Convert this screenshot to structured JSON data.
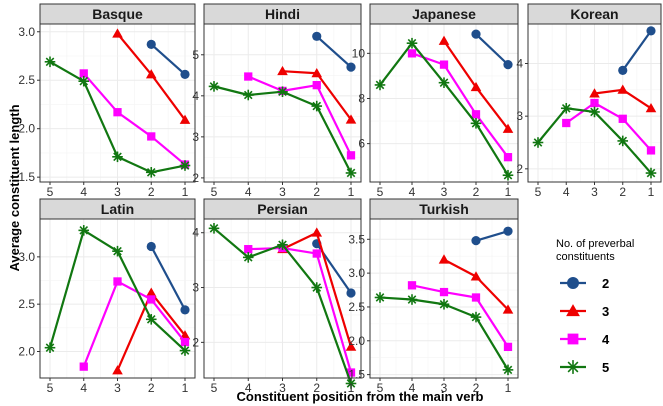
{
  "chart_data": {
    "type": "line",
    "xlabel": "Constituent position from the main verb",
    "ylabel": "Average constituent length",
    "x_ticks": [
      5,
      4,
      3,
      2,
      1
    ],
    "legend": {
      "title_lines": [
        "No. of preverbal",
        "constituents"
      ],
      "placement": "right"
    },
    "series_styles": [
      {
        "name": "2",
        "color": "#1f4e8c",
        "marker": "circle"
      },
      {
        "name": "3",
        "color": "#ee0000",
        "marker": "triangle"
      },
      {
        "name": "4",
        "color": "#ff00ff",
        "marker": "square"
      },
      {
        "name": "5",
        "color": "#117711",
        "marker": "star"
      }
    ],
    "grid": true,
    "panels": [
      {
        "title": "Basque",
        "ylim": [
          1.45,
          3.08
        ],
        "yticks": [
          1.5,
          2.0,
          2.5,
          3.0
        ],
        "ytick_labels": [
          "1.5",
          "2.0",
          "2.5",
          "3.0"
        ],
        "series": [
          {
            "name": "2",
            "x": [
              2,
              1
            ],
            "y": [
              2.87,
              2.56
            ]
          },
          {
            "name": "3",
            "x": [
              3,
              2,
              1
            ],
            "y": [
              2.98,
              2.56,
              2.09
            ]
          },
          {
            "name": "4",
            "x": [
              4,
              3,
              2,
              1
            ],
            "y": [
              2.57,
              2.17,
              1.92,
              1.63
            ]
          },
          {
            "name": "5",
            "x": [
              5,
              4,
              3,
              2,
              1
            ],
            "y": [
              2.69,
              2.49,
              1.71,
              1.55,
              1.62
            ]
          }
        ]
      },
      {
        "title": "Hindi",
        "ylim": [
          1.9,
          5.75
        ],
        "yticks": [
          2,
          3,
          4,
          5
        ],
        "ytick_labels": [
          "2",
          "3",
          "4",
          "5"
        ],
        "series": [
          {
            "name": "2",
            "x": [
              2,
              1
            ],
            "y": [
              5.45,
              4.7
            ]
          },
          {
            "name": "3",
            "x": [
              3,
              2,
              1
            ],
            "y": [
              4.6,
              4.55,
              3.42
            ]
          },
          {
            "name": "4",
            "x": [
              4,
              3,
              2,
              1
            ],
            "y": [
              4.47,
              4.12,
              4.26,
              2.55
            ]
          },
          {
            "name": "5",
            "x": [
              5,
              4,
              3,
              2,
              1
            ],
            "y": [
              4.23,
              4.02,
              4.1,
              3.75,
              2.12
            ]
          }
        ]
      },
      {
        "title": "Japanese",
        "ylim": [
          4.3,
          11.3
        ],
        "yticks": [
          6,
          8,
          10
        ],
        "ytick_labels": [
          "6",
          "8",
          "10"
        ],
        "series": [
          {
            "name": "2",
            "x": [
              2,
              1
            ],
            "y": [
              10.85,
              9.5
            ]
          },
          {
            "name": "3",
            "x": [
              3,
              2,
              1
            ],
            "y": [
              10.55,
              8.5,
              6.65
            ]
          },
          {
            "name": "4",
            "x": [
              4,
              3,
              2,
              1
            ],
            "y": [
              10.0,
              9.5,
              7.3,
              5.4
            ]
          },
          {
            "name": "5",
            "x": [
              5,
              4,
              3,
              2,
              1
            ],
            "y": [
              8.6,
              10.45,
              8.7,
              6.9,
              4.6
            ]
          }
        ]
      },
      {
        "title": "Korean",
        "ylim": [
          1.75,
          4.75
        ],
        "yticks": [
          2,
          3,
          4
        ],
        "ytick_labels": [
          "2",
          "3",
          "4"
        ],
        "series": [
          {
            "name": "2",
            "x": [
              2,
              1
            ],
            "y": [
              3.87,
              4.62
            ]
          },
          {
            "name": "3",
            "x": [
              3,
              2,
              1
            ],
            "y": [
              3.43,
              3.5,
              3.15
            ]
          },
          {
            "name": "4",
            "x": [
              4,
              3,
              2,
              1
            ],
            "y": [
              2.87,
              3.25,
              2.95,
              2.35
            ]
          },
          {
            "name": "5",
            "x": [
              5,
              4,
              3,
              2,
              1
            ],
            "y": [
              2.5,
              3.15,
              3.08,
              2.53,
              1.92
            ]
          }
        ]
      },
      {
        "title": "Latin",
        "ylim": [
          1.72,
          3.4
        ],
        "yticks": [
          2.0,
          2.5,
          3.0
        ],
        "ytick_labels": [
          "2.0",
          "2.5",
          "3.0"
        ],
        "series": [
          {
            "name": "2",
            "x": [
              2,
              1
            ],
            "y": [
              3.11,
              2.44
            ]
          },
          {
            "name": "3",
            "x": [
              3,
              2,
              1
            ],
            "y": [
              1.8,
              2.62,
              2.17
            ]
          },
          {
            "name": "4",
            "x": [
              4,
              3,
              2,
              1
            ],
            "y": [
              1.84,
              2.74,
              2.55,
              2.1
            ]
          },
          {
            "name": "5",
            "x": [
              5,
              4,
              3,
              2,
              1
            ],
            "y": [
              2.04,
              3.28,
              3.06,
              2.34,
              2.01
            ]
          }
        ]
      },
      {
        "title": "Persian",
        "ylim": [
          1.35,
          4.25
        ],
        "yticks": [
          2,
          3,
          4
        ],
        "ytick_labels": [
          "2",
          "3",
          "4"
        ],
        "series": [
          {
            "name": "2",
            "x": [
              2,
              1
            ],
            "y": [
              3.8,
              2.9
            ]
          },
          {
            "name": "3",
            "x": [
              3,
              2,
              1
            ],
            "y": [
              3.7,
              4.0,
              1.92
            ]
          },
          {
            "name": "4",
            "x": [
              4,
              3,
              2,
              1
            ],
            "y": [
              3.7,
              3.72,
              3.62,
              1.45
            ]
          },
          {
            "name": "5",
            "x": [
              5,
              4,
              3,
              2,
              1
            ],
            "y": [
              4.08,
              3.55,
              3.78,
              3.0,
              1.25
            ]
          }
        ]
      },
      {
        "title": "Turkish",
        "ylim": [
          1.45,
          3.8
        ],
        "yticks": [
          1.5,
          2.0,
          2.5,
          3.0,
          3.5
        ],
        "ytick_labels": [
          "1.5",
          "2.0",
          "2.5",
          "3.0",
          "3.5"
        ],
        "series": [
          {
            "name": "2",
            "x": [
              2,
              1
            ],
            "y": [
              3.48,
              3.62
            ]
          },
          {
            "name": "3",
            "x": [
              3,
              2,
              1
            ],
            "y": [
              3.2,
              2.95,
              2.46
            ]
          },
          {
            "name": "4",
            "x": [
              4,
              3,
              2,
              1
            ],
            "y": [
              2.82,
              2.72,
              2.64,
              1.91
            ]
          },
          {
            "name": "5",
            "x": [
              5,
              4,
              3,
              2,
              1
            ],
            "y": [
              2.64,
              2.61,
              2.54,
              2.35,
              1.57
            ]
          }
        ]
      }
    ]
  }
}
